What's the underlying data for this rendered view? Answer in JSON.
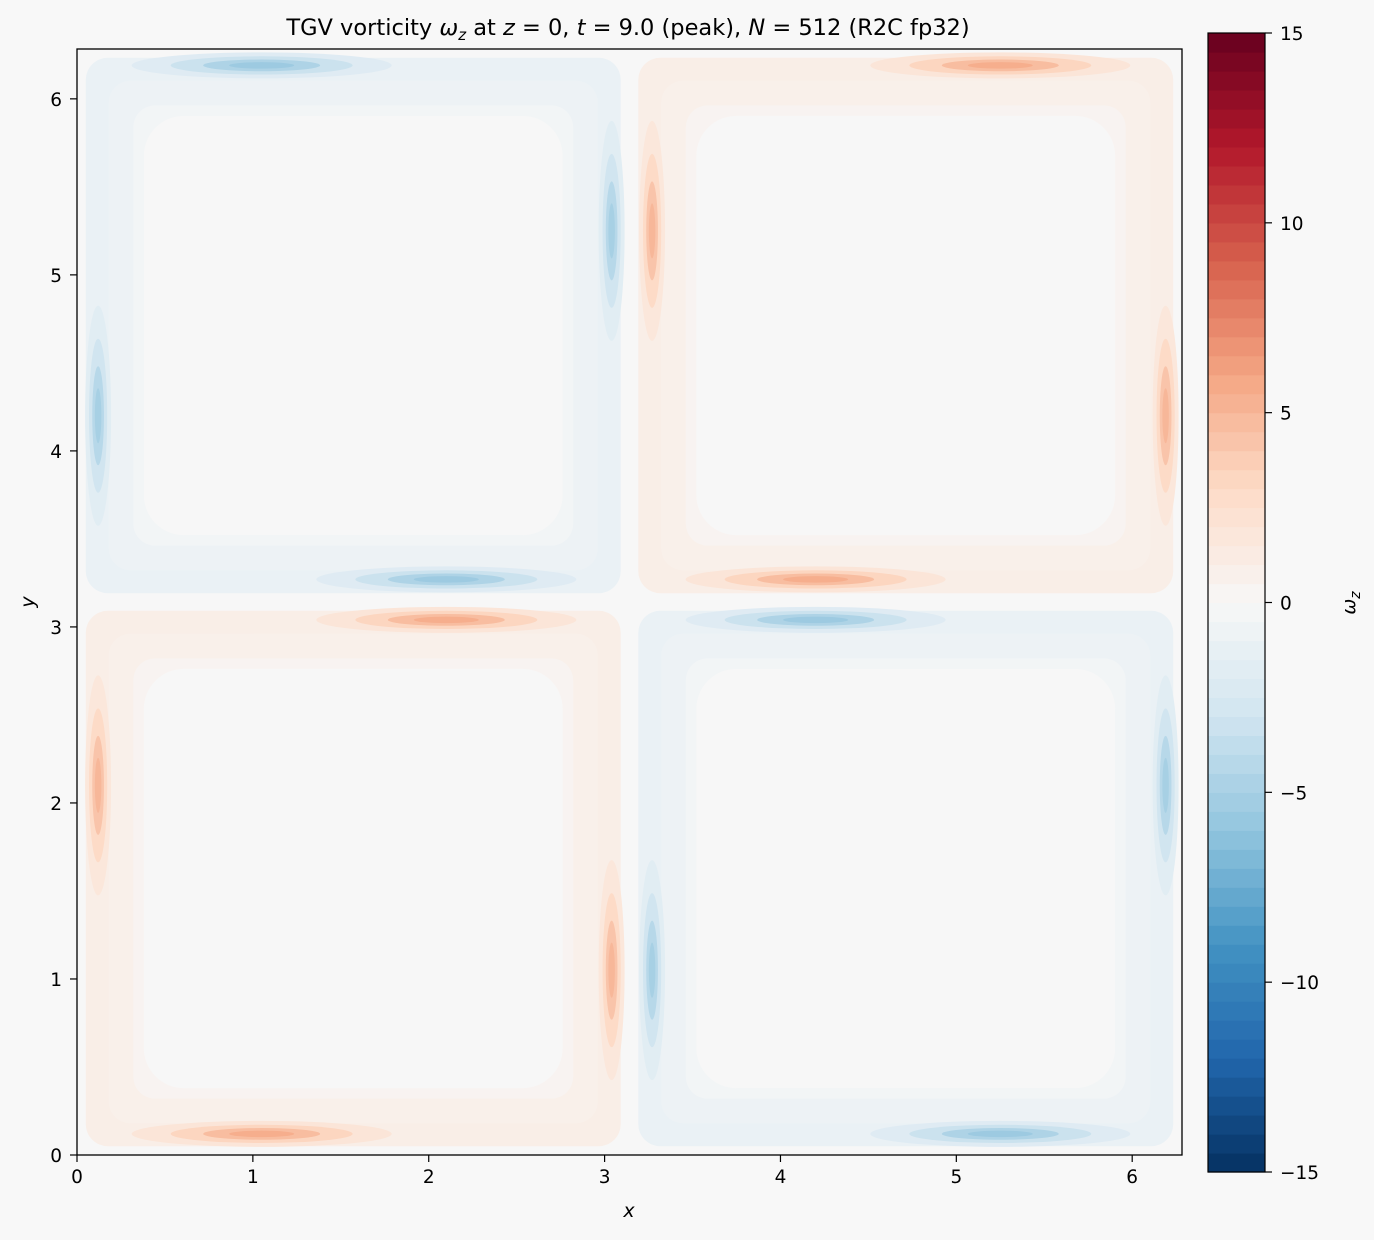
{
  "chart_data": {
    "type": "heatmap",
    "title_parts": [
      "TGV vorticity ",
      "ω",
      "z",
      " at ",
      "z",
      " = 0,  ",
      "t",
      " = 9.0 (peak),  ",
      "N",
      " = 512 (R2C fp32)"
    ],
    "xlabel": "x",
    "ylabel": "y",
    "xlim": [
      0,
      6.2832
    ],
    "ylim": [
      0,
      6.2832
    ],
    "xticks": [
      "0",
      "1",
      "2",
      "3",
      "4",
      "5",
      "6"
    ],
    "yticks": [
      "0",
      "1",
      "2",
      "3",
      "4",
      "5",
      "6"
    ],
    "colorbar": {
      "label_parts": [
        "ω",
        "z"
      ],
      "range": [
        -15,
        15
      ],
      "ticks": [
        "−15",
        "−10",
        "−5",
        "0",
        "5",
        "10",
        "15"
      ],
      "colormap": "RdBu_r"
    },
    "field": {
      "description_note": "",
      "cells": [
        {
          "quadrant": "lower-left",
          "sign": "positive"
        },
        {
          "quadrant": "lower-right",
          "sign": "negative"
        },
        {
          "quadrant": "upper-left",
          "sign": "negative"
        },
        {
          "quadrant": "upper-right",
          "sign": "positive"
        }
      ],
      "peaks": [
        {
          "x": 1.05,
          "y": 0.12,
          "value": 5.5
        },
        {
          "x": 2.1,
          "y": 3.04,
          "value": 5.5
        },
        {
          "x": 0.12,
          "y": 2.1,
          "value": 5.0
        },
        {
          "x": 3.04,
          "y": 1.05,
          "value": 5.0
        },
        {
          "x": 4.2,
          "y": 3.27,
          "value": 5.5
        },
        {
          "x": 5.25,
          "y": 6.19,
          "value": 5.5
        },
        {
          "x": 3.27,
          "y": 5.25,
          "value": 5.0
        },
        {
          "x": 6.19,
          "y": 4.2,
          "value": 5.0
        },
        {
          "x": 1.05,
          "y": 6.19,
          "value": -5.5
        },
        {
          "x": 2.1,
          "y": 3.27,
          "value": -5.5
        },
        {
          "x": 0.12,
          "y": 4.2,
          "value": -5.0
        },
        {
          "x": 3.04,
          "y": 5.25,
          "value": -5.0
        },
        {
          "x": 4.2,
          "y": 3.04,
          "value": -5.5
        },
        {
          "x": 5.25,
          "y": 0.12,
          "value": -5.5
        },
        {
          "x": 3.27,
          "y": 1.05,
          "value": -5.0
        },
        {
          "x": 6.19,
          "y": 2.1,
          "value": -5.0
        }
      ]
    }
  }
}
